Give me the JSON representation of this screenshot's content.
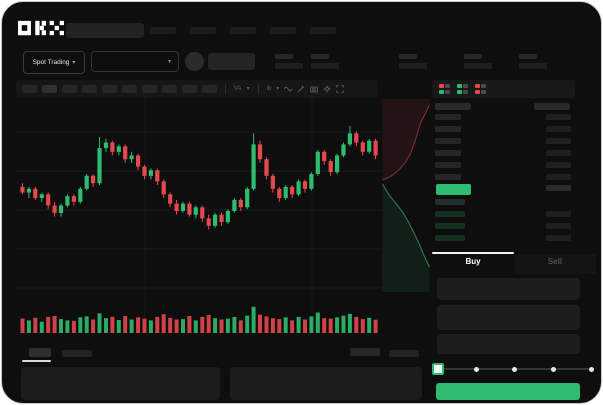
{
  "header": {
    "logo": "OKX",
    "nav_item_count": 5
  },
  "market_bar": {
    "market_selector_label": "Spot Trading",
    "chevron": "▾",
    "stat_group_count": 5
  },
  "toolbar": {
    "timeframe_button_count": 10,
    "active_timeframe_index": 1,
    "glyphs": {
      "indicator": "VA",
      "line_type": "lb",
      "chevron": "▾"
    },
    "icons": [
      "indicator",
      "chevron-down",
      "line-style",
      "chevron-down",
      "wave",
      "draw",
      "camera",
      "settings",
      "fullscreen"
    ]
  },
  "order_book": {
    "view_icons": [
      "book-combined",
      "book-bids",
      "book-asks"
    ],
    "ask_row_count": 6,
    "bid_row_count": 4,
    "last_price_color": "#2ebd70"
  },
  "trade_panel": {
    "tabs": [
      {
        "label": "Buy",
        "active": true
      },
      {
        "label": "Sell",
        "active": false
      }
    ],
    "field_count": 3,
    "slider_stop_count": 5,
    "slider_value_index": 0,
    "submit_button_color": "#2ebd70"
  },
  "bottom_bar": {
    "left_tab_count": 2,
    "active_tab_index": 0,
    "right_button_count": 2,
    "panel_count": 2
  },
  "colors": {
    "green": "#2ebd70",
    "red": "#e5484d",
    "background": "#0e0e0e"
  },
  "chart_data": {
    "type": "candlestick",
    "grid": true,
    "axis_labels": false,
    "price_scale": [
      0,
      100
    ],
    "candles": [
      [
        53,
        55,
        49,
        50
      ],
      [
        50,
        53,
        47,
        52
      ],
      [
        52,
        53,
        46,
        47
      ],
      [
        47,
        50,
        45,
        49
      ],
      [
        49,
        50,
        41,
        43
      ],
      [
        43,
        45,
        37,
        39
      ],
      [
        39,
        44,
        37,
        43
      ],
      [
        43,
        49,
        42,
        48
      ],
      [
        48,
        49,
        43,
        45
      ],
      [
        45,
        53,
        44,
        52
      ],
      [
        52,
        60,
        51,
        59
      ],
      [
        59,
        60,
        53,
        55
      ],
      [
        55,
        80,
        54,
        74
      ],
      [
        74,
        79,
        72,
        77
      ],
      [
        77,
        78,
        70,
        72
      ],
      [
        72,
        76,
        70,
        75
      ],
      [
        75,
        76,
        66,
        68
      ],
      [
        68,
        72,
        66,
        70
      ],
      [
        70,
        71,
        62,
        64
      ],
      [
        64,
        65,
        57,
        59
      ],
      [
        59,
        63,
        57,
        62
      ],
      [
        62,
        63,
        54,
        56
      ],
      [
        56,
        57,
        47,
        49
      ],
      [
        49,
        50,
        42,
        44
      ],
      [
        44,
        46,
        38,
        40
      ],
      [
        40,
        45,
        39,
        44
      ],
      [
        44,
        45,
        37,
        38
      ],
      [
        38,
        43,
        36,
        42
      ],
      [
        42,
        43,
        34,
        36
      ],
      [
        36,
        38,
        30,
        32
      ],
      [
        32,
        39,
        31,
        38
      ],
      [
        38,
        39,
        32,
        34
      ],
      [
        34,
        41,
        33,
        40
      ],
      [
        40,
        47,
        39,
        46
      ],
      [
        46,
        47,
        40,
        42
      ],
      [
        42,
        53,
        41,
        52
      ],
      [
        52,
        82,
        51,
        76
      ],
      [
        76,
        78,
        66,
        68
      ],
      [
        68,
        69,
        57,
        59
      ],
      [
        59,
        60,
        50,
        52
      ],
      [
        52,
        53,
        45,
        47
      ],
      [
        47,
        54,
        46,
        53
      ],
      [
        53,
        54,
        47,
        49
      ],
      [
        49,
        57,
        48,
        56
      ],
      [
        56,
        57,
        50,
        52
      ],
      [
        52,
        61,
        51,
        60
      ],
      [
        60,
        73,
        59,
        72
      ],
      [
        72,
        73,
        65,
        67
      ],
      [
        67,
        68,
        59,
        61
      ],
      [
        61,
        71,
        60,
        70
      ],
      [
        70,
        77,
        69,
        76
      ],
      [
        76,
        86,
        75,
        82
      ],
      [
        82,
        83,
        75,
        77
      ],
      [
        77,
        78,
        70,
        72
      ],
      [
        72,
        79,
        71,
        78
      ],
      [
        78,
        79,
        68,
        70
      ]
    ],
    "volumes": [
      38,
      30,
      42,
      24,
      46,
      50,
      36,
      30,
      28,
      44,
      48,
      34,
      62,
      40,
      46,
      32,
      50,
      34,
      44,
      38,
      30,
      46,
      58,
      42,
      34,
      36,
      50,
      30,
      46,
      54,
      40,
      34,
      38,
      46,
      30,
      52,
      92,
      56,
      48,
      40,
      36,
      44,
      30,
      46,
      34,
      48,
      66,
      40,
      38,
      44,
      52,
      60,
      46,
      36,
      42,
      33
    ],
    "depth": {
      "asks": [
        [
          1,
          0.03
        ],
        [
          0.88,
          0.09
        ],
        [
          0.8,
          0.13
        ],
        [
          0.72,
          0.2
        ],
        [
          0.6,
          0.28
        ],
        [
          0.48,
          0.33
        ],
        [
          0.34,
          0.37
        ],
        [
          0.18,
          0.4
        ],
        [
          0,
          0.42
        ]
      ],
      "bids": [
        [
          0,
          0.44
        ],
        [
          0.12,
          0.49
        ],
        [
          0.28,
          0.54
        ],
        [
          0.44,
          0.59
        ],
        [
          0.56,
          0.64
        ],
        [
          0.68,
          0.7
        ],
        [
          0.78,
          0.75
        ],
        [
          0.88,
          0.81
        ],
        [
          1,
          0.87
        ]
      ]
    }
  }
}
